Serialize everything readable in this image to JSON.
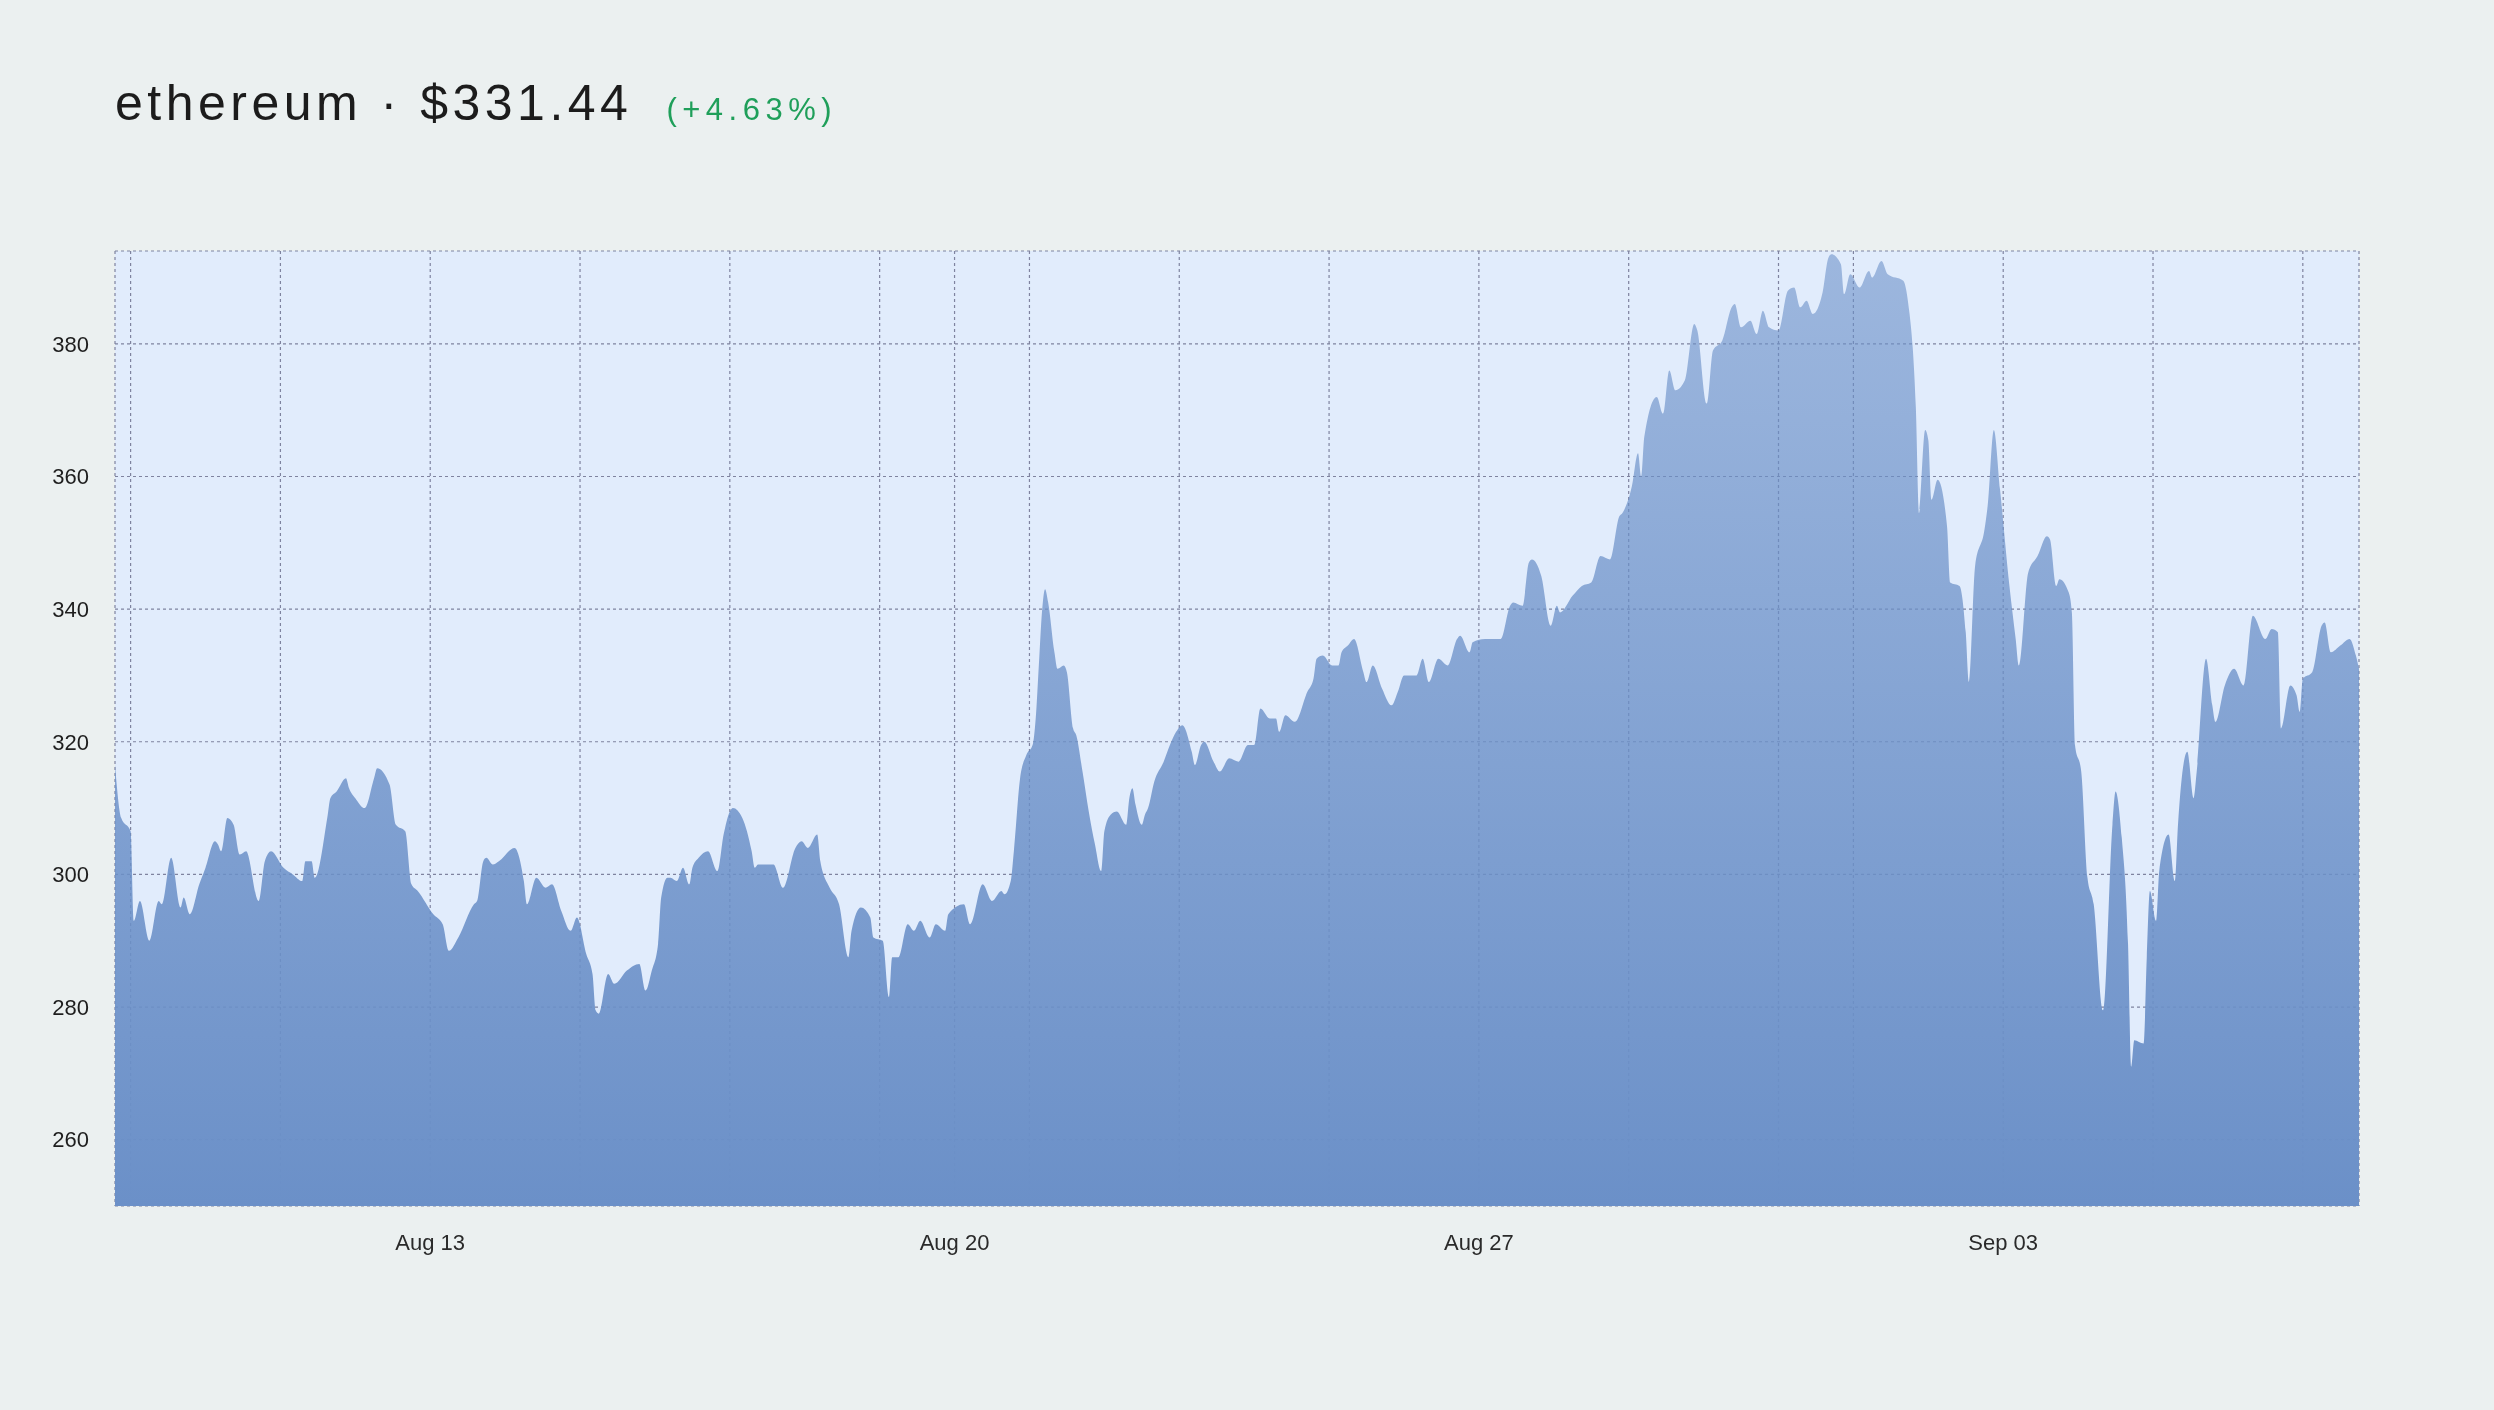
{
  "chart_data": {
    "type": "area",
    "title": "ethereum · $331.44",
    "subtitle": "(+4.63%)",
    "color": "#6b90c8",
    "grid": true,
    "xlim": [
      "--08-08T19:00",
      "--09-07T18:00"
    ],
    "ylim": [
      250,
      394
    ],
    "xticks": [
      {
        "value": "--08-09",
        "label": null
      },
      {
        "value": "--08-11",
        "label": null
      },
      {
        "value": "--08-13",
        "label": "Aug 13"
      },
      {
        "value": "--08-15",
        "label": null
      },
      {
        "value": "--08-17",
        "label": null
      },
      {
        "value": "--08-19",
        "label": null
      },
      {
        "value": "--08-20",
        "label": "Aug 20"
      },
      {
        "value": "--08-21",
        "label": null
      },
      {
        "value": "--08-23",
        "label": null
      },
      {
        "value": "--08-25",
        "label": null
      },
      {
        "value": "--08-27",
        "label": "Aug 27"
      },
      {
        "value": "--08-29",
        "label": null
      },
      {
        "value": "--08-31",
        "label": null
      },
      {
        "value": "--09-01",
        "label": null
      },
      {
        "value": "--09-03",
        "label": "Sep 03"
      },
      {
        "value": "--09-05",
        "label": null
      },
      {
        "value": "--09-07",
        "label": null
      }
    ],
    "yticks": [
      260,
      280,
      300,
      320,
      340,
      360,
      380
    ],
    "x": [
      "--08-08T19:00",
      "--08-08T21:00",
      "--08-09T00:00",
      "--08-09T01:00",
      "--08-09T03:00",
      "--08-09T06:00",
      "--08-09T09:00",
      "--08-09T10:00",
      "--08-09T13:00",
      "--08-09T16:00",
      "--08-09T17:00",
      "--08-09T19:00",
      "--08-09T22:00",
      "--08-10T00:00",
      "--08-10T03:00",
      "--08-10T04:00",
      "--08-10T05:00",
      "--08-10T07:00",
      "--08-10T09:00",
      "--08-10T11:00",
      "--08-10T13:00",
      "--08-10T17:00",
      "--08-10T19:00",
      "--08-10T21:00",
      "--08-11T01:00",
      "--08-11T04:00",
      "--08-11T07:00",
      "--08-11T08:00",
      "--08-11T10:00",
      "--08-11T11:00",
      "--08-11T15:00",
      "--08-11T16:00",
      "--08-11T18:00",
      "--08-11T21:00",
      "--08-11T22:00",
      "--08-12T00:00",
      "--08-12T03:00",
      "--08-12T06:00",
      "--08-12T07:00",
      "--08-12T11:00",
      "--08-12T13:00",
      "--08-12T16:00",
      "--08-12T18:00",
      "--08-12T20:00",
      "--08-13T01:00",
      "--08-13T04:00",
      "--08-13T06:00",
      "--08-13T09:00",
      "--08-13T14:00",
      "--08-13T15:00",
      "--08-13T17:00",
      "--08-13T18:00",
      "--08-13T20:00",
      "--08-13T22:00",
      "--08-14T03:00",
      "--08-14T06:00",
      "--08-14T07:00",
      "--08-14T10:00",
      "--08-14T13:00",
      "--08-14T15:00",
      "--08-14T18:00",
      "--08-14T21:00",
      "--08-14T23:00",
      "--08-15T02:00",
      "--08-15T04:00",
      "--08-15T05:00",
      "--08-15T06:00",
      "--08-15T09:00",
      "--08-15T11:00",
      "--08-15T15:00",
      "--08-15T19:00",
      "--08-15T21:00",
      "--08-15T23:00",
      "--08-16T01:00",
      "--08-16T02:00",
      "--08-16T04:00",
      "--08-16T05:00",
      "--08-16T07:00",
      "--08-16T09:00",
      "--08-16T11:00",
      "--08-16T12:00",
      "--08-16T14:00",
      "--08-16T17:00",
      "--08-16T20:00",
      "--08-16T22:00",
      "--08-17T00:00",
      "--08-17T01:00",
      "--08-17T04:00",
      "--08-17T07:00",
      "--08-17T08:00",
      "--08-17T09:00",
      "--08-17T14:00",
      "--08-17T17:00",
      "--08-17T21:00",
      "--08-17T23:00",
      "--08-18T01:00",
      "--08-18T04:00",
      "--08-18T05:00",
      "--08-18T08:00",
      "--08-18T11:00",
      "--08-18T14:00",
      "--08-18T15:00",
      "--08-18T18:00",
      "--08-18T21:00",
      "--08-18T22:00",
      "--08-19T01:00",
      "--08-19T03:00",
      "--08-19T04:00",
      "--08-19T06:00",
      "--08-19T09:00",
      "--08-19T11:00",
      "--08-19T13:00",
      "--08-19T16:00",
      "--08-19T18:00",
      "--08-19T21:00",
      "--08-19T22:00",
      "--08-20T03:00",
      "--08-20T05:00",
      "--08-20T09:00",
      "--08-20T12:00",
      "--08-20T15:00",
      "--08-20T16:00",
      "--08-20T18:00",
      "--08-20T19:00",
      "--08-20T21:00",
      "--08-20T23:00",
      "--08-21T01:00",
      "--08-21T02:00",
      "--08-21T03:00",
      "--08-21T04:00",
      "--08-21T05:00",
      "--08-21T06:00",
      "--08-21T08:00",
      "--08-21T09:00",
      "--08-21T11:00",
      "--08-21T12:00",
      "--08-21T14:00",
      "--08-21T15:00",
      "--08-21T17:00",
      "--08-21T19:00",
      "--08-21T21:00",
      "--08-21T23:00",
      "--08-22T00:00",
      "--08-22T02:00",
      "--08-22T04:00",
      "--08-22T07:00",
      "--08-22T08:00",
      "--08-22T09:00",
      "--08-22T10:00",
      "--08-22T12:00",
      "--08-22T13:00",
      "--08-22T14:00",
      "--08-22T16:00",
      "--08-22T19:00",
      "--08-22T21:00",
      "--08-22T23:00",
      "--08-23T01:00",
      "--08-23T04:00",
      "--08-23T05:00",
      "--08-23T07:00",
      "--08-23T08:00",
      "--08-23T11:00",
      "--08-23T13:00",
      "--08-23T16:00",
      "--08-23T19:00",
      "--08-23T22:00",
      "--08-24T00:00",
      "--08-24T02:00",
      "--08-24T05:00",
      "--08-24T07:00",
      "--08-24T08:00",
      "--08-24T10:00",
      "--08-24T13:00",
      "--08-24T17:00",
      "--08-24T19:00",
      "--08-24T20:00",
      "--08-24T22:00",
      "--08-25T01:00",
      "--08-25T03:00",
      "--08-25T04:00",
      "--08-25T06:00",
      "--08-25T08:00",
      "--08-25T11:00",
      "--08-25T12:00",
      "--08-25T14:00",
      "--08-25T17:00",
      "--08-25T20:00",
      "--08-25T22:00",
      "--08-26T00:00",
      "--08-26T04:00",
      "--08-26T06:00",
      "--08-26T08:00",
      "--08-26T11:00",
      "--08-26T14:00",
      "--08-26T17:00",
      "--08-26T18:00",
      "--08-26T21:00",
      "--08-26T22:00",
      "--08-27T02:00",
      "--08-27T05:00",
      "--08-27T07:00",
      "--08-27T10:00",
      "--08-27T11:00",
      "--08-27T14:00",
      "--08-27T16:00",
      "--08-27T17:00",
      "--08-27T20:00",
      "--08-27T23:00",
      "--08-28T01:00",
      "--08-28T02:00",
      "--08-28T06:00",
      "--08-28T09:00",
      "--08-28T12:00",
      "--08-28T15:00",
      "--08-28T18:00",
      "--08-28T21:00",
      "--08-28T22:00",
      "--08-29T01:00",
      "--08-29T03:00",
      "--08-29T04:00",
      "--08-29T05:00",
      "--08-29T09:00",
      "--08-29T11:00",
      "--08-29T13:00",
      "--08-29T15:00",
      "--08-29T18:00",
      "--08-29T21:00",
      "--08-29T22:00",
      "--08-30T01:00",
      "--08-30T03:00",
      "--08-30T06:00",
      "--08-30T09:00",
      "--08-30T10:00",
      "--08-30T12:00",
      "--08-30T15:00",
      "--08-30T17:00",
      "--08-30T19:00",
      "--08-30T21:00",
      "--08-31T00:00",
      "--08-31T03:00",
      "--08-31T05:00",
      "--08-31T07:00",
      "--08-31T09:00",
      "--08-31T11:00",
      "--08-31T14:00",
      "--08-31T16:00",
      "--08-31T17:00",
      "--08-31T20:00",
      "--08-31T21:00",
      "--08-31T23:00",
      "--09-01T02:00",
      "--09-01T05:00",
      "--09-01T06:00",
      "--09-01T09:00",
      "--09-01T11:00",
      "--09-01T16:00",
      "--09-01T18:00",
      "--09-01T19:00",
      "--09-01T20:00",
      "--09-01T21:00",
      "--09-01T23:00",
      "--09-02T00:00",
      "--09-02T01:00",
      "--09-02T03:00",
      "--09-02T06:00",
      "--09-02T07:00",
      "--09-02T10:00",
      "--09-02T12:00",
      "--09-02T13:00",
      "--09-02T15:00",
      "--09-02T18:00",
      "--09-02T19:00",
      "--09-02T21:00",
      "--09-02T23:00",
      "--09-03T02:00",
      "--09-03T04:00",
      "--09-03T05:00",
      "--09-03T08:00",
      "--09-03T11:00",
      "--09-03T14:00",
      "--09-03T15:00",
      "--09-03T17:00",
      "--09-03T18:00",
      "--09-03T21:00",
      "--09-03T22:00",
      "--09-03T23:00",
      "--09-04T01:00",
      "--09-04T03:00",
      "--09-04T05:00",
      "--09-04T08:00",
      "--09-04T11:00",
      "--09-04T12:00",
      "--09-04T14:00",
      "--09-04T16:00",
      "--09-04T17:00",
      "--09-04T18:00",
      "--09-04T21:00",
      "--09-04T22:00",
      "--09-04T23:00",
      "--09-05T01:00",
      "--09-05T02:00",
      "--09-05T05:00",
      "--09-05T07:00",
      "--09-05T08:00",
      "--09-05T11:00",
      "--09-05T13:00",
      "--09-05T14:00",
      "--09-05T17:00",
      "--09-05T19:00",
      "--09-05T20:00",
      "--09-05T23:00",
      "--09-06T02:00",
      "--09-06T05:00",
      "--09-06T08:00",
      "--09-06T12:00",
      "--09-06T14:00",
      "--09-06T16:00",
      "--09-06T17:00",
      "--09-06T20:00",
      "--09-06T22:00",
      "--09-06T23:00",
      "--09-07T00:00",
      "--09-07T03:00",
      "--09-07T06:00",
      "--09-07T07:00",
      "--09-07T09:00",
      "--09-07T12:00",
      "--09-07T15:00",
      "--09-07T17:00",
      "--09-07T18:00"
    ],
    "values": [
      316.5,
      308.5,
      306.5,
      293,
      296,
      290,
      296,
      295.5,
      302.5,
      295,
      296.5,
      294,
      298.5,
      301,
      305,
      304.5,
      303.5,
      308.5,
      307.5,
      303,
      303.5,
      296,
      302,
      303.5,
      301,
      300,
      299,
      302,
      302,
      299.5,
      308.5,
      311.5,
      312.5,
      314.5,
      313,
      311.5,
      310,
      314.5,
      316,
      313.5,
      307.5,
      306.5,
      298.5,
      297.5,
      294,
      292.5,
      288.5,
      290.5,
      295.5,
      296,
      302,
      302.5,
      301.5,
      302,
      304,
      299,
      295.5,
      299.5,
      298,
      298.5,
      294.5,
      291.5,
      293.5,
      288,
      285,
      279.5,
      279,
      285,
      283.5,
      285.5,
      286.5,
      282.5,
      285.5,
      289.5,
      296.5,
      299.5,
      299.5,
      299,
      301,
      298.5,
      301,
      302.5,
      303.5,
      300.5,
      306,
      309.5,
      310,
      308.5,
      303.5,
      301,
      301.5,
      301.5,
      298,
      304,
      305,
      304,
      306,
      302,
      298,
      295.5,
      287.5,
      291.5,
      295,
      293.5,
      290.5,
      290,
      281.5,
      287.5,
      287.5,
      292.5,
      291.5,
      293,
      290.5,
      292.5,
      291.5,
      294,
      295.5,
      292.5,
      298.5,
      296,
      297.5,
      297,
      299,
      303.5,
      314.5,
      318,
      319.5,
      323.5,
      331.5,
      339.5,
      343,
      341,
      333.5,
      331,
      331.5,
      330.5,
      322,
      321,
      315.5,
      309.5,
      304.5,
      300.5,
      306.5,
      309,
      309.5,
      307.5,
      311.5,
      313,
      310.5,
      307.5,
      309,
      310,
      314,
      317,
      319.5,
      321.5,
      322.5,
      318.5,
      316.5,
      319.5,
      320,
      317,
      315.5,
      317.5,
      317,
      319.5,
      319.5,
      325,
      323.5,
      323.5,
      321.5,
      324,
      323,
      327.5,
      329.5,
      332.5,
      333,
      331.5,
      331.5,
      333.5,
      334.5,
      335.5,
      330.5,
      329,
      331.5,
      328,
      325.5,
      327.5,
      330,
      330,
      332.5,
      329,
      332.5,
      331.5,
      335.5,
      336,
      333.5,
      335,
      335.5,
      335.5,
      335.5,
      340.5,
      341,
      340.5,
      347,
      347.5,
      345,
      337.5,
      340.5,
      339.5,
      342,
      343.5,
      344,
      348,
      347.5,
      354,
      354.5,
      358.5,
      363.5,
      360,
      366,
      372,
      369.5,
      376,
      373,
      374.5,
      383,
      382,
      371,
      379,
      380.5,
      385.5,
      386,
      382.5,
      383.5,
      381.5,
      385,
      382.5,
      382,
      388,
      388.5,
      385.5,
      386.5,
      384.5,
      387.5,
      393,
      393.5,
      392,
      387.5,
      390.5,
      388.5,
      391,
      390,
      392.5,
      390.5,
      389.5,
      384.5,
      379.5,
      370.5,
      354.5,
      367,
      365.5,
      356.5,
      359.5,
      352.5,
      344,
      343.5,
      336.5,
      329,
      346.5,
      352,
      355.5,
      367,
      358,
      343.5,
      335.5,
      331.5,
      345.5,
      348,
      351,
      350.5,
      343.5,
      344.5,
      342.5,
      339.5,
      319.5,
      315.5,
      299.5,
      295.5,
      279.5,
      307.5,
      312.5,
      305.5,
      289.5,
      271,
      275,
      274.5,
      287.5,
      297.5,
      293,
      300.5,
      306,
      299,
      307.5,
      318.5,
      311.5,
      315.5,
      332.5,
      325.5,
      323,
      328.5,
      331,
      328.5,
      339,
      335.5,
      337,
      336.5,
      322,
      328.5,
      327,
      324.5,
      329.5,
      330.5,
      337.5,
      338,
      333.5,
      334.5,
      335.5,
      333,
      331
    ]
  }
}
